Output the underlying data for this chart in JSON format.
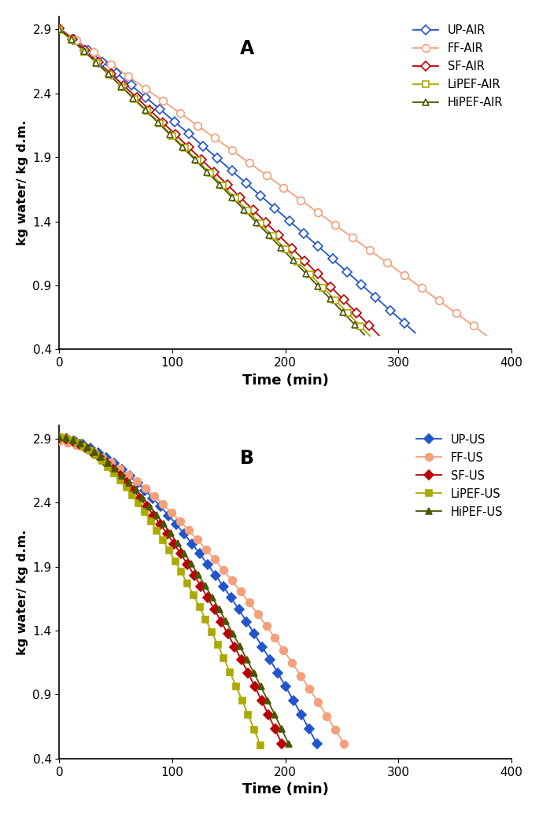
{
  "panel_A": {
    "label": "A",
    "series": [
      {
        "name": "UP-AIR",
        "color": "#2255CC",
        "marker": "D",
        "marker_facecolor": "white",
        "marker_edgecolor": "#2255CC",
        "markersize": 6,
        "x_end": 315,
        "y_start": 2.905,
        "y_end": 0.53,
        "power": 1.05
      },
      {
        "name": "FF-AIR",
        "color": "#F4A07A",
        "marker": "o",
        "marker_facecolor": "white",
        "marker_edgecolor": "#F4A07A",
        "markersize": 7,
        "x_end": 378,
        "y_start": 2.905,
        "y_end": 0.51,
        "power": 1.02
      },
      {
        "name": "SF-AIR",
        "color": "#BB0000",
        "marker": "D",
        "marker_facecolor": "white",
        "marker_edgecolor": "#BB0000",
        "markersize": 6,
        "x_end": 283,
        "y_start": 2.905,
        "y_end": 0.51,
        "power": 1.05
      },
      {
        "name": "LiPEF-AIR",
        "color": "#AAAA00",
        "marker": "s",
        "marker_facecolor": "white",
        "marker_edgecolor": "#AAAA00",
        "markersize": 6,
        "x_end": 275,
        "y_start": 2.895,
        "y_end": 0.505,
        "power": 1.05
      },
      {
        "name": "HiPEF-AIR",
        "color": "#4A5500",
        "marker": "^",
        "marker_facecolor": "white",
        "marker_edgecolor": "#4A5500",
        "markersize": 6,
        "x_end": 270,
        "y_start": 2.9,
        "y_end": 0.515,
        "power": 1.05
      }
    ]
  },
  "panel_B": {
    "label": "B",
    "series": [
      {
        "name": "UP-US",
        "color": "#2255CC",
        "marker": "D",
        "marker_facecolor": "#2255CC",
        "marker_edgecolor": "#2255CC",
        "markersize": 6,
        "x_end": 228,
        "y_start": 2.905,
        "y_end": 0.515,
        "power": 1.6
      },
      {
        "name": "FF-US",
        "color": "#F4A07A",
        "marker": "o",
        "marker_facecolor": "#F4A07A",
        "marker_edgecolor": "#F4A07A",
        "markersize": 7,
        "x_end": 252,
        "y_start": 2.88,
        "y_end": 0.515,
        "power": 1.55
      },
      {
        "name": "SF-US",
        "color": "#BB0000",
        "marker": "D",
        "marker_facecolor": "#BB0000",
        "marker_edgecolor": "#BB0000",
        "markersize": 6,
        "x_end": 197,
        "y_start": 2.905,
        "y_end": 0.515,
        "power": 1.6
      },
      {
        "name": "LiPEF-US",
        "color": "#AAAA00",
        "marker": "s",
        "marker_facecolor": "#AAAA00",
        "marker_edgecolor": "#AAAA00",
        "markersize": 6,
        "x_end": 178,
        "y_start": 2.91,
        "y_end": 0.505,
        "power": 1.65
      },
      {
        "name": "HiPEF-US",
        "color": "#4A5500",
        "marker": "^",
        "marker_facecolor": "#4A5500",
        "marker_edgecolor": "#4A5500",
        "markersize": 6,
        "x_end": 203,
        "y_start": 2.91,
        "y_end": 0.515,
        "power": 1.6
      }
    ]
  },
  "xlim": [
    0,
    400
  ],
  "ylim": [
    0.4,
    3.0
  ],
  "yticks": [
    0.4,
    0.9,
    1.4,
    1.9,
    2.4,
    2.9
  ],
  "xticks": [
    0,
    100,
    200,
    300,
    400
  ],
  "ylabel": "kg water/ kg d.m.",
  "xlabel": "Time (min)",
  "n_points": 100,
  "marker_step_A": 4,
  "marker_step_B": 3
}
